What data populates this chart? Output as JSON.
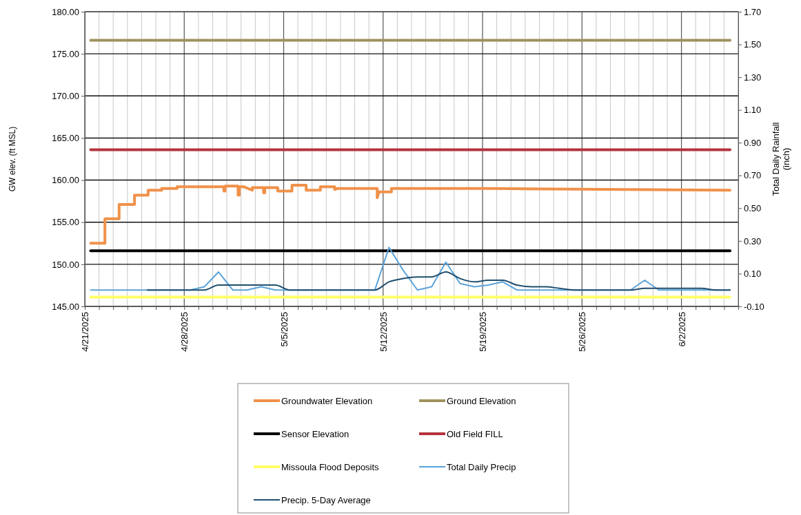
{
  "chart_data": {
    "type": "line",
    "ylabel": "GW elev. (ft MSL)",
    "y2label": "Total Daily Rainfall (inch)",
    "xlim": [
      "2025-04-21",
      "2025-06-06"
    ],
    "xticks": [
      {
        "value": "2025-04-21",
        "label": "4/21/2025"
      },
      {
        "value": "2025-04-22",
        "label": null
      },
      {
        "value": "2025-04-23",
        "label": null
      },
      {
        "value": "2025-04-24",
        "label": null
      },
      {
        "value": "2025-04-25",
        "label": null
      },
      {
        "value": "2025-04-26",
        "label": null
      },
      {
        "value": "2025-04-27",
        "label": null
      },
      {
        "value": "2025-04-28",
        "label": "4/28/2025"
      },
      {
        "value": "2025-04-29",
        "label": null
      },
      {
        "value": "2025-04-30",
        "label": null
      },
      {
        "value": "2025-05-01",
        "label": null
      },
      {
        "value": "2025-05-02",
        "label": null
      },
      {
        "value": "2025-05-03",
        "label": null
      },
      {
        "value": "2025-05-04",
        "label": null
      },
      {
        "value": "2025-05-05",
        "label": "5/5/2025"
      },
      {
        "value": "2025-05-06",
        "label": null
      },
      {
        "value": "2025-05-07",
        "label": null
      },
      {
        "value": "2025-05-08",
        "label": null
      },
      {
        "value": "2025-05-09",
        "label": null
      },
      {
        "value": "2025-05-10",
        "label": null
      },
      {
        "value": "2025-05-11",
        "label": null
      },
      {
        "value": "2025-05-12",
        "label": "5/12/2025"
      },
      {
        "value": "2025-05-13",
        "label": null
      },
      {
        "value": "2025-05-14",
        "label": null
      },
      {
        "value": "2025-05-15",
        "label": null
      },
      {
        "value": "2025-05-16",
        "label": null
      },
      {
        "value": "2025-05-17",
        "label": null
      },
      {
        "value": "2025-05-18",
        "label": null
      },
      {
        "value": "2025-05-19",
        "label": "5/19/2025"
      },
      {
        "value": "2025-05-20",
        "label": null
      },
      {
        "value": "2025-05-21",
        "label": null
      },
      {
        "value": "2025-05-22",
        "label": null
      },
      {
        "value": "2025-05-23",
        "label": null
      },
      {
        "value": "2025-05-24",
        "label": null
      },
      {
        "value": "2025-05-25",
        "label": null
      },
      {
        "value": "2025-05-26",
        "label": "5/26/2025"
      },
      {
        "value": "2025-05-27",
        "label": null
      },
      {
        "value": "2025-05-28",
        "label": null
      },
      {
        "value": "2025-05-29",
        "label": null
      },
      {
        "value": "2025-05-30",
        "label": null
      },
      {
        "value": "2025-05-31",
        "label": null
      },
      {
        "value": "2025-06-01",
        "label": null
      },
      {
        "value": "2025-06-02",
        "label": "6/2/2025"
      },
      {
        "value": "2025-06-03",
        "label": null
      },
      {
        "value": "2025-06-04",
        "label": null
      },
      {
        "value": "2025-06-05",
        "label": null
      }
    ],
    "ylim": [
      145,
      180
    ],
    "yticks": [
      {
        "value": 145,
        "label": "145.00"
      },
      {
        "value": 150,
        "label": "150.00"
      },
      {
        "value": 155,
        "label": "155.00"
      },
      {
        "value": 160,
        "label": "160.00"
      },
      {
        "value": 165,
        "label": "165.00"
      },
      {
        "value": 170,
        "label": "170.00"
      },
      {
        "value": 175,
        "label": "175.00"
      },
      {
        "value": 180,
        "label": "180.00"
      }
    ],
    "y2lim": [
      -0.1,
      1.7
    ],
    "y2ticks": [
      {
        "value": -0.1,
        "label": "-0.10"
      },
      {
        "value": 0.1,
        "label": "0.10"
      },
      {
        "value": 0.3,
        "label": "0.30"
      },
      {
        "value": 0.5,
        "label": "0.50"
      },
      {
        "value": 0.7,
        "label": "0.70"
      },
      {
        "value": 0.9,
        "label": "0.90"
      },
      {
        "value": 1.1,
        "label": "1.10"
      },
      {
        "value": 1.3,
        "label": "1.30"
      },
      {
        "value": 1.5,
        "label": "1.50"
      },
      {
        "value": 1.7,
        "label": "1.70"
      }
    ],
    "grid": true,
    "legend": "bottom",
    "marker": "none",
    "line_style": "solid",
    "series": [
      {
        "name": "Groundwater Elevation",
        "color": "#f0914a",
        "x": [
          "2025-04-21T10:00",
          "2025-04-22T10:00",
          "2025-04-22T10:00",
          "2025-04-23T10:00",
          "2025-04-23T10:00",
          "2025-04-24T12:00",
          "2025-04-24T12:00",
          "2025-04-25T11:00",
          "2025-04-25T11:00",
          "2025-04-26T10:00",
          "2025-04-26T10:00",
          "2025-04-27T12:00",
          "2025-04-27T12:00",
          "2025-04-30T19:00",
          "2025-04-30T19:00",
          "2025-04-30T21:00",
          "2025-04-30T21:00",
          "2025-05-01T19:00",
          "2025-05-01T19:00",
          "2025-05-01T21:00",
          "2025-05-01T21:00",
          "2025-05-02T05:00",
          "2025-05-02T19:00",
          "2025-05-02T19:00",
          "2025-05-03T14:00",
          "2025-05-03T14:00",
          "2025-05-03T16:00",
          "2025-05-03T16:00",
          "2025-05-04T14:00",
          "2025-05-04T14:00",
          "2025-05-05T14:00",
          "2025-05-05T14:00",
          "2025-05-06T14:00",
          "2025-05-06T14:00",
          "2025-05-07T14:00",
          "2025-05-07T14:00",
          "2025-05-08T14:00",
          "2025-05-08T14:00",
          "2025-05-08T16:00",
          "2025-05-08T16:00",
          "2025-05-11T14:00",
          "2025-05-11T14:00",
          "2025-05-11T17:00",
          "2025-05-12T14:00",
          "2025-05-12T14:00",
          "2025-05-19T12:00",
          "2025-06-05T10:00"
        ],
        "values": [
          152.5,
          152.5,
          155.4,
          155.4,
          157.1,
          157.1,
          158.2,
          158.2,
          158.8,
          158.8,
          159.0,
          159.0,
          159.2,
          159.2,
          158.7,
          158.7,
          159.3,
          159.3,
          158.2,
          158.2,
          159.2,
          159.2,
          158.8,
          159.1,
          159.1,
          158.5,
          158.5,
          159.1,
          159.1,
          158.7,
          158.7,
          159.4,
          159.4,
          158.8,
          158.8,
          159.2,
          159.2,
          158.9,
          158.9,
          159.0,
          159.0,
          157.9,
          158.6,
          158.6,
          159.0,
          159.0,
          158.8
        ]
      },
      {
        "name": "Ground Elevation",
        "color": "#a0925e",
        "x": [
          "2025-04-21T10:00",
          "2025-06-05T10:00"
        ],
        "values": [
          176.6,
          176.6
        ]
      },
      {
        "name": "Sensor Elevation",
        "color": "#000000",
        "x": [
          "2025-04-21T10:00",
          "2025-06-05T10:00"
        ],
        "values": [
          151.6,
          151.6
        ]
      },
      {
        "name": "Old Field FILL",
        "color": "#b5323e",
        "x": [
          "2025-04-21T10:00",
          "2025-06-05T10:00"
        ],
        "values": [
          163.6,
          163.6
        ]
      },
      {
        "name": "Missoula Flood Deposits",
        "color": "#ffff66",
        "x": [
          "2025-04-21T10:00",
          "2025-06-05T10:00"
        ],
        "values": [
          146.1,
          146.1
        ]
      },
      {
        "name": "Total Daily Precip",
        "color": "#5ba3d9",
        "axis": "y2",
        "x": [
          "2025-04-21T10:00",
          "2025-04-22T10:00",
          "2025-04-23T10:00",
          "2025-04-24T10:00",
          "2025-04-25T10:00",
          "2025-04-26T10:00",
          "2025-04-27T10:00",
          "2025-04-28T10:00",
          "2025-04-29T10:00",
          "2025-04-30T10:00",
          "2025-05-01T10:00",
          "2025-05-02T10:00",
          "2025-05-03T10:00",
          "2025-05-04T10:00",
          "2025-05-05T10:00",
          "2025-05-06T10:00",
          "2025-05-07T10:00",
          "2025-05-08T10:00",
          "2025-05-09T10:00",
          "2025-05-10T10:00",
          "2025-05-11T10:00",
          "2025-05-12T10:00",
          "2025-05-13T10:00",
          "2025-05-14T10:00",
          "2025-05-15T10:00",
          "2025-05-16T10:00",
          "2025-05-17T10:00",
          "2025-05-18T10:00",
          "2025-05-19T10:00",
          "2025-05-20T10:00",
          "2025-05-21T10:00",
          "2025-05-22T10:00",
          "2025-05-23T10:00",
          "2025-05-24T10:00",
          "2025-05-25T10:00",
          "2025-05-26T10:00",
          "2025-05-27T10:00",
          "2025-05-28T10:00",
          "2025-05-29T10:00",
          "2025-05-30T10:00",
          "2025-05-31T10:00",
          "2025-06-01T10:00",
          "2025-06-02T10:00",
          "2025-06-03T10:00",
          "2025-06-04T10:00",
          "2025-06-05T10:00"
        ],
        "values": [
          0,
          0,
          0,
          0,
          0,
          0,
          0,
          0,
          0.02,
          0.11,
          0,
          0,
          0.02,
          0,
          0,
          0,
          0,
          0,
          0,
          0,
          0,
          0.26,
          0.12,
          0,
          0.02,
          0.17,
          0.04,
          0.02,
          0.03,
          0.05,
          0,
          0,
          0,
          0,
          0,
          0,
          0,
          0,
          0,
          0.06,
          0,
          0,
          0,
          0,
          0,
          0
        ]
      },
      {
        "name": "Precip. 5-Day Average",
        "color": "#1f4e6e",
        "axis": "y2",
        "x": [
          "2025-04-25T10:00",
          "2025-04-26T10:00",
          "2025-04-27T10:00",
          "2025-04-28T10:00",
          "2025-04-29T10:00",
          "2025-04-30T10:00",
          "2025-05-01T10:00",
          "2025-05-02T10:00",
          "2025-05-03T10:00",
          "2025-05-04T10:00",
          "2025-05-05T10:00",
          "2025-05-06T10:00",
          "2025-05-07T10:00",
          "2025-05-08T10:00",
          "2025-05-09T10:00",
          "2025-05-10T10:00",
          "2025-05-11T10:00",
          "2025-05-12T10:00",
          "2025-05-13T10:00",
          "2025-05-14T10:00",
          "2025-05-15T10:00",
          "2025-05-16T10:00",
          "2025-05-17T10:00",
          "2025-05-18T10:00",
          "2025-05-19T10:00",
          "2025-05-20T10:00",
          "2025-05-21T10:00",
          "2025-05-22T10:00",
          "2025-05-23T10:00",
          "2025-05-24T10:00",
          "2025-05-25T10:00",
          "2025-05-26T10:00",
          "2025-05-27T10:00",
          "2025-05-28T10:00",
          "2025-05-29T10:00",
          "2025-05-30T10:00",
          "2025-05-31T10:00",
          "2025-06-01T10:00",
          "2025-06-02T10:00",
          "2025-06-03T10:00",
          "2025-06-04T10:00",
          "2025-06-05T10:00"
        ],
        "values": [
          0,
          0,
          0,
          0,
          0,
          0.03,
          0.03,
          0.03,
          0.03,
          0.03,
          0,
          0,
          0,
          0,
          0,
          0,
          0,
          0.05,
          0.07,
          0.08,
          0.08,
          0.11,
          0.07,
          0.05,
          0.06,
          0.06,
          0.03,
          0.02,
          0.02,
          0.01,
          0,
          0,
          0,
          0,
          0,
          0.01,
          0.01,
          0.01,
          0.01,
          0.01,
          0,
          0
        ]
      }
    ]
  }
}
